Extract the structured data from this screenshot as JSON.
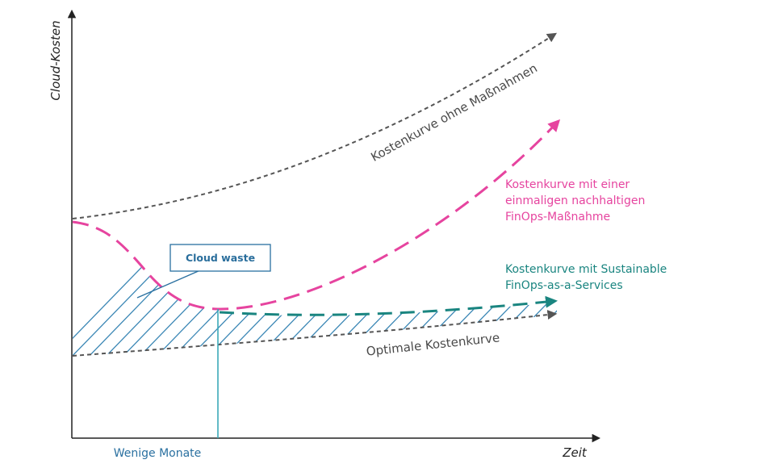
{
  "colors": {
    "axis": "#222222",
    "grey_curve": "#555555",
    "pink": "#e6449f",
    "teal": "#1a8580",
    "blue": "#2a70a0",
    "hatch": "#3b87b5"
  },
  "axes": {
    "y_label": "Cloud-Kosten",
    "x_label": "Zeit",
    "x_marker_label": "Wenige Monate"
  },
  "curves": {
    "upper": {
      "label": "Kostenkurve ohne Maßnahmen"
    },
    "pink": {
      "label_lines": [
        "Kostenkurve mit einer",
        "einmaligen nachhaltigen",
        "FinOps-Maßnahme"
      ]
    },
    "teal": {
      "label_lines": [
        "Kostenkurve mit Sustainable",
        "FinOps-as-a-Services"
      ]
    },
    "optimal": {
      "label": "Optimale Kostenkurve"
    }
  },
  "callout": {
    "label": "Cloud waste"
  }
}
